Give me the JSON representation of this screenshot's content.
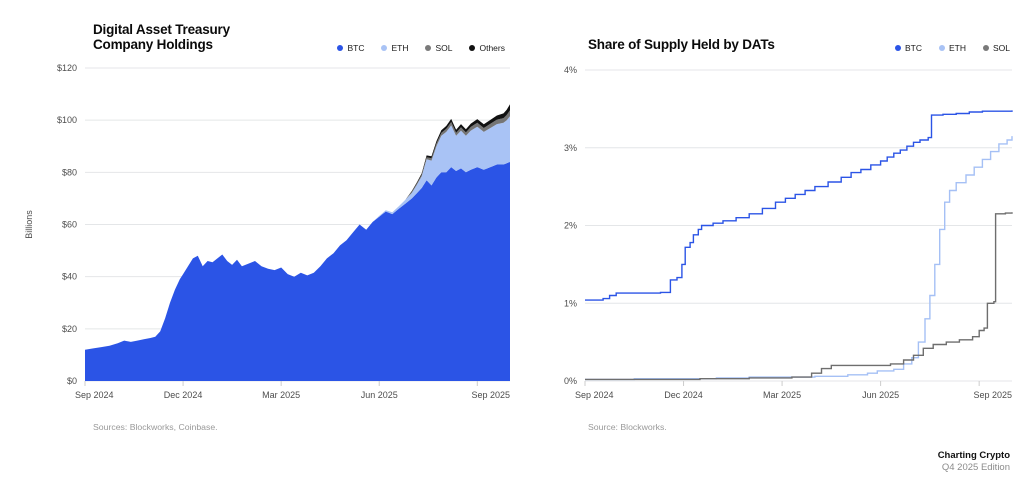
{
  "footer": {
    "brand": "Charting Crypto",
    "edition": "Q4 2025 Edition"
  },
  "chart_data": [
    {
      "type": "area",
      "stacked": true,
      "title": "Digital Asset Treasury\nCompany Holdings",
      "ylabel": "Billions",
      "source": "Sources: Blockworks, Coinbase.",
      "xlim": [
        0,
        13
      ],
      "ylim": [
        0,
        120
      ],
      "grid": true,
      "legend_position": "top-right",
      "legend": [
        {
          "label": "BTC",
          "color": "#2B54E6"
        },
        {
          "label": "ETH",
          "color": "#A9C3F5"
        },
        {
          "label": "SOL",
          "color": "#7A7A7A"
        },
        {
          "label": "Others",
          "color": "#111111"
        }
      ],
      "y_ticks": [
        {
          "v": 120,
          "label": "$120"
        },
        {
          "v": 100,
          "label": "$100"
        },
        {
          "v": 80,
          "label": "$80"
        },
        {
          "v": 60,
          "label": "$60"
        },
        {
          "v": 40,
          "label": "$40"
        },
        {
          "v": 20,
          "label": "$20"
        },
        {
          "v": 0,
          "label": "$0"
        }
      ],
      "x_ticks": [
        {
          "m": 0,
          "label": "Sep 2024"
        },
        {
          "m": 3,
          "label": "Dec 2024"
        },
        {
          "m": 6,
          "label": "Mar 2025"
        },
        {
          "m": 9,
          "label": "Jun 2025"
        },
        {
          "m": 12,
          "label": "Sep 2025"
        }
      ],
      "x": [
        0,
        0.25,
        0.5,
        0.75,
        1.0,
        1.2,
        1.4,
        1.6,
        1.8,
        2.0,
        2.15,
        2.3,
        2.45,
        2.6,
        2.75,
        2.9,
        3.0,
        3.15,
        3.3,
        3.45,
        3.6,
        3.75,
        3.9,
        4.05,
        4.2,
        4.35,
        4.5,
        4.65,
        4.8,
        5.0,
        5.2,
        5.4,
        5.6,
        5.8,
        6.0,
        6.2,
        6.4,
        6.6,
        6.8,
        7.0,
        7.2,
        7.4,
        7.6,
        7.8,
        8.0,
        8.2,
        8.4,
        8.6,
        8.8,
        9.0,
        9.2,
        9.4,
        9.6,
        9.8,
        10.0,
        10.15,
        10.3,
        10.45,
        10.6,
        10.75,
        10.9,
        11.05,
        11.2,
        11.35,
        11.5,
        11.65,
        11.8,
        12.0,
        12.2,
        12.4,
        12.6,
        12.8,
        12.9,
        13.0
      ],
      "series": [
        {
          "name": "BTC",
          "color": "#2B54E6",
          "values": [
            12,
            12.5,
            13,
            13.5,
            14.5,
            15.5,
            15,
            15.5,
            16,
            16.5,
            17,
            19,
            24,
            30,
            35,
            39,
            41,
            44,
            47,
            48,
            44,
            46,
            45.5,
            47,
            48.5,
            46,
            44.5,
            46.5,
            44,
            45,
            46,
            44,
            43,
            42.5,
            43.5,
            41,
            40,
            41.5,
            40.5,
            41.5,
            44,
            47,
            49,
            52,
            54,
            57,
            60,
            58,
            61,
            63,
            65,
            64,
            66,
            68,
            70,
            72,
            74,
            77,
            75,
            78,
            80,
            80,
            82,
            80.5,
            81.5,
            80,
            81,
            82,
            81,
            82,
            83,
            83,
            83.5,
            84
          ]
        },
        {
          "name": "ETH",
          "color": "#A9C3F5",
          "values": [
            0,
            0,
            0,
            0,
            0,
            0,
            0,
            0,
            0,
            0,
            0,
            0,
            0,
            0,
            0,
            0,
            0,
            0,
            0,
            0,
            0,
            0,
            0,
            0,
            0,
            0,
            0,
            0,
            0,
            0,
            0,
            0,
            0,
            0,
            0,
            0,
            0,
            0,
            0,
            0,
            0,
            0,
            0,
            0,
            0,
            0,
            0,
            0,
            0,
            0.3,
            0.5,
            0.7,
            1.0,
            1.5,
            2.2,
            3.2,
            4.5,
            8,
            9.5,
            12,
            14,
            15.5,
            16,
            13.5,
            14.5,
            14,
            15,
            15.5,
            14.5,
            15,
            15.5,
            16,
            16.5,
            17.5
          ]
        },
        {
          "name": "SOL",
          "color": "#757575",
          "values": [
            0,
            0,
            0,
            0,
            0,
            0,
            0,
            0,
            0,
            0,
            0,
            0,
            0,
            0,
            0,
            0,
            0,
            0,
            0,
            0,
            0,
            0,
            0,
            0,
            0,
            0,
            0,
            0,
            0,
            0,
            0,
            0,
            0,
            0,
            0,
            0,
            0,
            0,
            0,
            0,
            0,
            0,
            0,
            0,
            0,
            0,
            0,
            0,
            0,
            0,
            0,
            0,
            0,
            0,
            0.4,
            0.5,
            0.6,
            0.8,
            0.9,
            1.0,
            1.1,
            1.2,
            1.3,
            1.2,
            1.3,
            1.3,
            1.4,
            1.5,
            1.5,
            1.6,
            1.7,
            1.8,
            2.0,
            2.3
          ]
        },
        {
          "name": "Others",
          "color": "#111111",
          "values": [
            0,
            0,
            0,
            0,
            0,
            0,
            0,
            0,
            0,
            0,
            0,
            0,
            0,
            0,
            0,
            0,
            0,
            0,
            0,
            0,
            0,
            0,
            0,
            0,
            0,
            0,
            0,
            0,
            0,
            0,
            0,
            0,
            0,
            0,
            0,
            0,
            0,
            0,
            0,
            0,
            0,
            0,
            0,
            0,
            0,
            0,
            0,
            0,
            0,
            0,
            0,
            0,
            0,
            0,
            0.3,
            0.4,
            0.5,
            0.7,
            0.8,
            0.9,
            1.0,
            1.1,
            1.2,
            1.1,
            1.2,
            1.2,
            1.3,
            1.4,
            1.4,
            1.5,
            1.6,
            1.8,
            2.0,
            2.3
          ]
        }
      ]
    },
    {
      "type": "line",
      "step": true,
      "title": "Share of Supply Held by DATs",
      "source": "Source: Blockworks.",
      "xlim": [
        0,
        13
      ],
      "ylim": [
        0,
        4
      ],
      "grid": true,
      "legend_position": "top-right",
      "legend": [
        {
          "label": "BTC",
          "color": "#2B54E6"
        },
        {
          "label": "ETH",
          "color": "#A9C3F5"
        },
        {
          "label": "SOL",
          "color": "#7A7A7A"
        }
      ],
      "y_ticks": [
        {
          "v": 4,
          "label": "4%"
        },
        {
          "v": 3,
          "label": "3%"
        },
        {
          "v": 2,
          "label": "2%"
        },
        {
          "v": 1,
          "label": "1%"
        },
        {
          "v": 0,
          "label": "0%"
        }
      ],
      "x_ticks": [
        {
          "m": 0,
          "label": "Sep 2024"
        },
        {
          "m": 3,
          "label": "Dec 2024"
        },
        {
          "m": 6,
          "label": "Mar 2025"
        },
        {
          "m": 9,
          "label": "Jun 2025"
        },
        {
          "m": 12,
          "label": "Sep 2025"
        }
      ],
      "series": [
        {
          "name": "BTC",
          "color": "#2B54E6",
          "points": [
            [
              0,
              1.04
            ],
            [
              0.55,
              1.06
            ],
            [
              0.75,
              1.1
            ],
            [
              0.95,
              1.13
            ],
            [
              2.3,
              1.14
            ],
            [
              2.6,
              1.3
            ],
            [
              2.8,
              1.33
            ],
            [
              2.95,
              1.5
            ],
            [
              3.05,
              1.72
            ],
            [
              3.2,
              1.78
            ],
            [
              3.3,
              1.88
            ],
            [
              3.45,
              1.95
            ],
            [
              3.55,
              2.0
            ],
            [
              3.9,
              2.03
            ],
            [
              4.2,
              2.06
            ],
            [
              4.6,
              2.1
            ],
            [
              5.0,
              2.15
            ],
            [
              5.4,
              2.22
            ],
            [
              5.8,
              2.3
            ],
            [
              6.1,
              2.35
            ],
            [
              6.4,
              2.4
            ],
            [
              6.7,
              2.45
            ],
            [
              7.0,
              2.5
            ],
            [
              7.4,
              2.56
            ],
            [
              7.8,
              2.62
            ],
            [
              8.1,
              2.68
            ],
            [
              8.4,
              2.72
            ],
            [
              8.7,
              2.78
            ],
            [
              9.0,
              2.83
            ],
            [
              9.2,
              2.88
            ],
            [
              9.4,
              2.93
            ],
            [
              9.6,
              2.97
            ],
            [
              9.8,
              3.02
            ],
            [
              10.0,
              3.07
            ],
            [
              10.2,
              3.1
            ],
            [
              10.45,
              3.13
            ],
            [
              10.55,
              3.42
            ],
            [
              10.9,
              3.43
            ],
            [
              11.3,
              3.44
            ],
            [
              11.7,
              3.46
            ],
            [
              12.1,
              3.47
            ],
            [
              13.0,
              3.48
            ]
          ]
        },
        {
          "name": "ETH",
          "color": "#A5C0F5",
          "points": [
            [
              0,
              0.02
            ],
            [
              1.5,
              0.03
            ],
            [
              3.0,
              0.03
            ],
            [
              4.0,
              0.04
            ],
            [
              5.0,
              0.05
            ],
            [
              6.0,
              0.05
            ],
            [
              7.0,
              0.06
            ],
            [
              8.0,
              0.08
            ],
            [
              8.6,
              0.1
            ],
            [
              8.9,
              0.13
            ],
            [
              9.4,
              0.15
            ],
            [
              9.7,
              0.22
            ],
            [
              9.95,
              0.3
            ],
            [
              10.15,
              0.5
            ],
            [
              10.35,
              0.8
            ],
            [
              10.5,
              1.1
            ],
            [
              10.65,
              1.5
            ],
            [
              10.8,
              1.95
            ],
            [
              10.95,
              2.3
            ],
            [
              11.1,
              2.45
            ],
            [
              11.3,
              2.55
            ],
            [
              11.6,
              2.65
            ],
            [
              11.85,
              2.75
            ],
            [
              12.1,
              2.85
            ],
            [
              12.35,
              2.95
            ],
            [
              12.6,
              3.05
            ],
            [
              12.85,
              3.1
            ],
            [
              13.0,
              3.15
            ]
          ]
        },
        {
          "name": "SOL",
          "color": "#6E6E6E",
          "points": [
            [
              0,
              0.02
            ],
            [
              2.0,
              0.02
            ],
            [
              3.5,
              0.03
            ],
            [
              5.0,
              0.04
            ],
            [
              6.3,
              0.05
            ],
            [
              6.9,
              0.1
            ],
            [
              7.2,
              0.16
            ],
            [
              7.5,
              0.2
            ],
            [
              8.6,
              0.2
            ],
            [
              9.3,
              0.22
            ],
            [
              9.7,
              0.27
            ],
            [
              10.0,
              0.33
            ],
            [
              10.3,
              0.42
            ],
            [
              10.6,
              0.47
            ],
            [
              11.0,
              0.5
            ],
            [
              11.4,
              0.53
            ],
            [
              11.8,
              0.57
            ],
            [
              12.0,
              0.65
            ],
            [
              12.15,
              0.68
            ],
            [
              12.25,
              1.0
            ],
            [
              12.45,
              1.02
            ],
            [
              12.5,
              2.15
            ],
            [
              12.8,
              2.16
            ],
            [
              13.0,
              2.17
            ]
          ]
        }
      ]
    }
  ]
}
